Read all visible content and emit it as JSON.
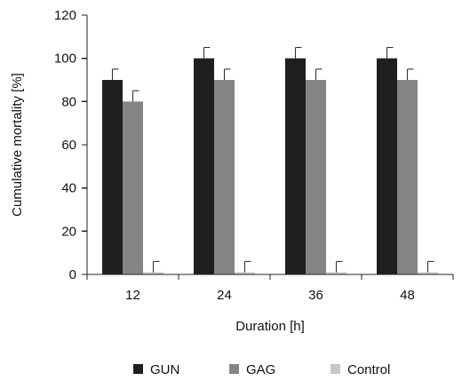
{
  "chart_data": {
    "type": "bar",
    "categories": [
      "12",
      "24",
      "36",
      "48"
    ],
    "series": [
      {
        "name": "GUN",
        "values": [
          90,
          100,
          100,
          100
        ],
        "errors": [
          5,
          5,
          5,
          5
        ],
        "color": "#1f1f1f"
      },
      {
        "name": "GAG",
        "values": [
          80,
          90,
          90,
          90
        ],
        "errors": [
          5,
          5,
          5,
          5
        ],
        "color": "#858585"
      },
      {
        "name": "Control",
        "values": [
          1,
          1,
          1,
          1
        ],
        "errors": [
          5,
          5,
          5,
          5
        ],
        "color": "#c8c8c8"
      }
    ],
    "xlabel": "Duration [h]",
    "ylabel": "Cumulative mortality [%]",
    "ylim": [
      0,
      120
    ],
    "yticks": [
      0,
      20,
      40,
      60,
      80,
      100,
      120
    ],
    "grid": false,
    "legend_position": "bottom"
  }
}
